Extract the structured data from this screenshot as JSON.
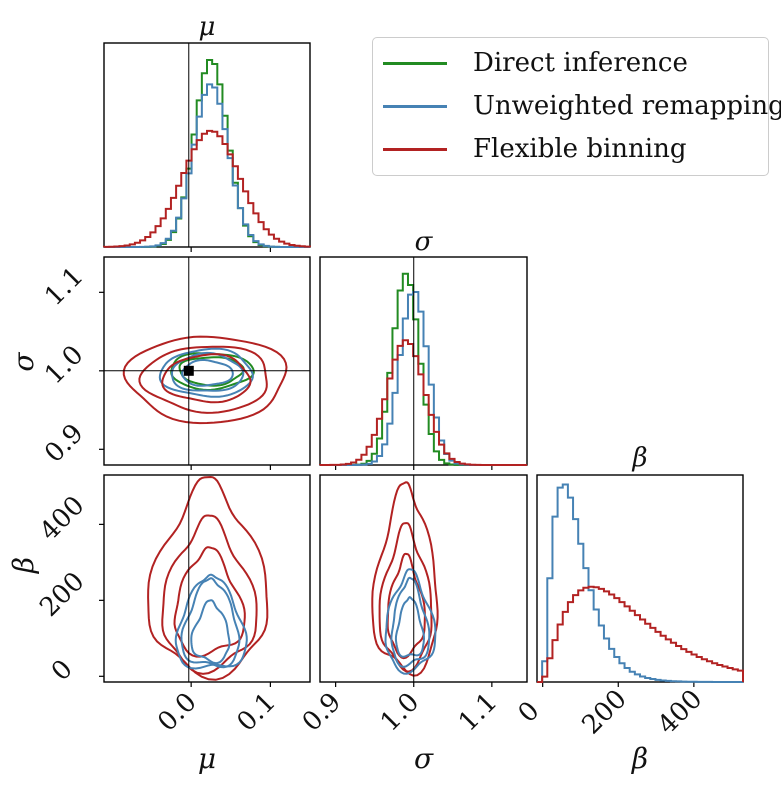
{
  "figure": {
    "type": "corner plot",
    "params": [
      {
        "symbol": "μ",
        "range": [
          -0.11,
          0.15
        ],
        "ticks": [
          0.0,
          0.1
        ],
        "tick_labels": [
          "0.0",
          "0.1"
        ],
        "truth": -0.003
      },
      {
        "symbol": "σ",
        "range": [
          0.88,
          1.145
        ],
        "ticks": [
          0.9,
          1.0,
          1.1
        ],
        "tick_labels": [
          "0.9",
          "1.0",
          "1.1"
        ],
        "truth": 1.0
      },
      {
        "symbol": "β",
        "range": [
          -15,
          530
        ],
        "ticks": [
          0,
          200,
          400
        ],
        "tick_labels": [
          "0",
          "200",
          "400"
        ],
        "truth": null
      }
    ],
    "truth_point": {
      "mu": -0.003,
      "sigma": 1.0
    }
  },
  "legend": {
    "items": [
      {
        "label": "Direct inference",
        "color": "#228B22"
      },
      {
        "label": "Unweighted remapping",
        "color": "#4682B4"
      },
      {
        "label": "Flexible binning",
        "color": "#B22222"
      }
    ]
  },
  "chart_data": {
    "type": "corner",
    "title_labels": [
      "μ",
      "σ",
      "β"
    ],
    "xlabels": [
      "μ",
      "σ",
      "β"
    ],
    "ylabels": [
      "σ",
      "β"
    ],
    "series": [
      {
        "name": "Direct inference",
        "color": "#228B22",
        "hist_mu": {
          "center": 0.025,
          "sd": 0.021,
          "amp": 0.92
        },
        "hist_sigma": {
          "center": 0.99,
          "sd": 0.017,
          "amp": 0.92
        },
        "ellipses_mu_sigma": {
          "center": [
            0.025,
            1.0
          ],
          "radii": [
            [
              0.04,
              0.018
            ],
            [
              0.052,
              0.023
            ]
          ]
        }
      },
      {
        "name": "Unweighted remapping",
        "color": "#4682B4",
        "hist_mu": {
          "center": 0.025,
          "sd": 0.022,
          "amp": 0.8
        },
        "hist_sigma": {
          "center": 1.0,
          "sd": 0.018,
          "amp": 0.84
        },
        "hist_beta": {
          "peak": 55,
          "amp": 0.96
        },
        "ellipses_mu_sigma": {
          "center": [
            0.02,
            0.997
          ],
          "radii": [
            [
              0.032,
              0.016
            ],
            [
              0.045,
              0.024
            ],
            [
              0.058,
              0.03
            ]
          ]
        }
      },
      {
        "name": "Flexible binning",
        "color": "#B22222",
        "hist_mu": {
          "center": 0.025,
          "sd": 0.036,
          "amp": 0.57
        },
        "hist_sigma": {
          "center": 0.99,
          "sd": 0.024,
          "amp": 0.6
        },
        "hist_beta": {
          "peak": 130,
          "amp": 0.46
        },
        "ellipses_mu_sigma": {
          "center": [
            0.02,
            0.99
          ],
          "radii": [
            [
              0.055,
              0.03
            ],
            [
              0.08,
              0.042
            ],
            [
              0.1,
              0.055
            ]
          ]
        }
      }
    ]
  }
}
